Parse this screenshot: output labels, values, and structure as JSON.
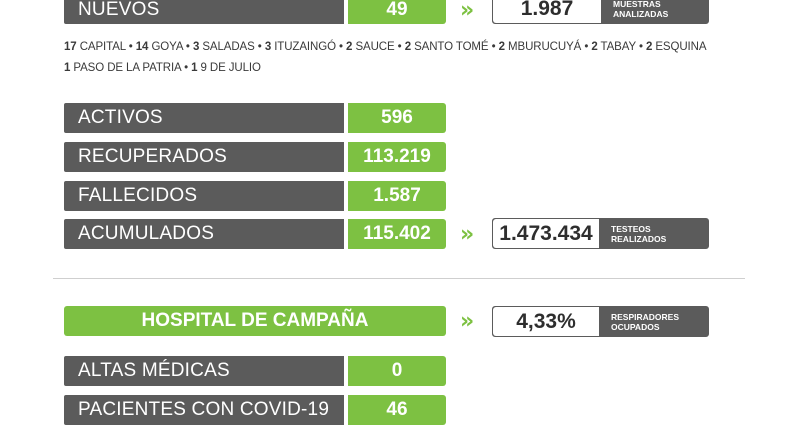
{
  "nuevos": {
    "label": "NUEVOS",
    "value": "49"
  },
  "muestras": {
    "value": "1.987",
    "caption_line1": "MUESTRAS",
    "caption_line2": "ANALIZADAS"
  },
  "distribution": {
    "line1": [
      {
        "n": "17",
        "place": "CAPITAL"
      },
      {
        "n": "14",
        "place": "GOYA"
      },
      {
        "n": "3",
        "place": "SALADAS"
      },
      {
        "n": "3",
        "place": "ITUZAINGÓ"
      },
      {
        "n": "2",
        "place": "SAUCE"
      },
      {
        "n": "2",
        "place": "SANTO TOMÉ"
      },
      {
        "n": "2",
        "place": "MBURUCUYÁ"
      },
      {
        "n": "2",
        "place": "TABAY"
      },
      {
        "n": "2",
        "place": "ESQUINA"
      }
    ],
    "line2": [
      {
        "n": "1",
        "place": "PASO DE LA PATRIA"
      },
      {
        "n": "1",
        "place": "9 DE JULIO"
      }
    ]
  },
  "stats": [
    {
      "label": "ACTIVOS",
      "value": "596"
    },
    {
      "label": "RECUPERADOS",
      "value": "113.219"
    },
    {
      "label": "FALLECIDOS",
      "value": "1.587"
    },
    {
      "label": "ACUMULADOS",
      "value": "115.402"
    }
  ],
  "testeos": {
    "value": "1.473.434",
    "caption_line1": "TESTEOS",
    "caption_line2": "REALIZADOS"
  },
  "hospital": {
    "title": "HOSPITAL DE CAMPAÑA"
  },
  "respiradores": {
    "value": "4,33%",
    "caption_line1": "RESPIRADORES",
    "caption_line2": "OCUPADOS"
  },
  "hospital_stats": [
    {
      "label": "ALTAS MÉDICAS",
      "value": "0"
    },
    {
      "label": "PACIENTES CON COVID-19",
      "value": "46"
    }
  ],
  "colors": {
    "green": "#7dc142",
    "gray": "#5b5b5b"
  }
}
